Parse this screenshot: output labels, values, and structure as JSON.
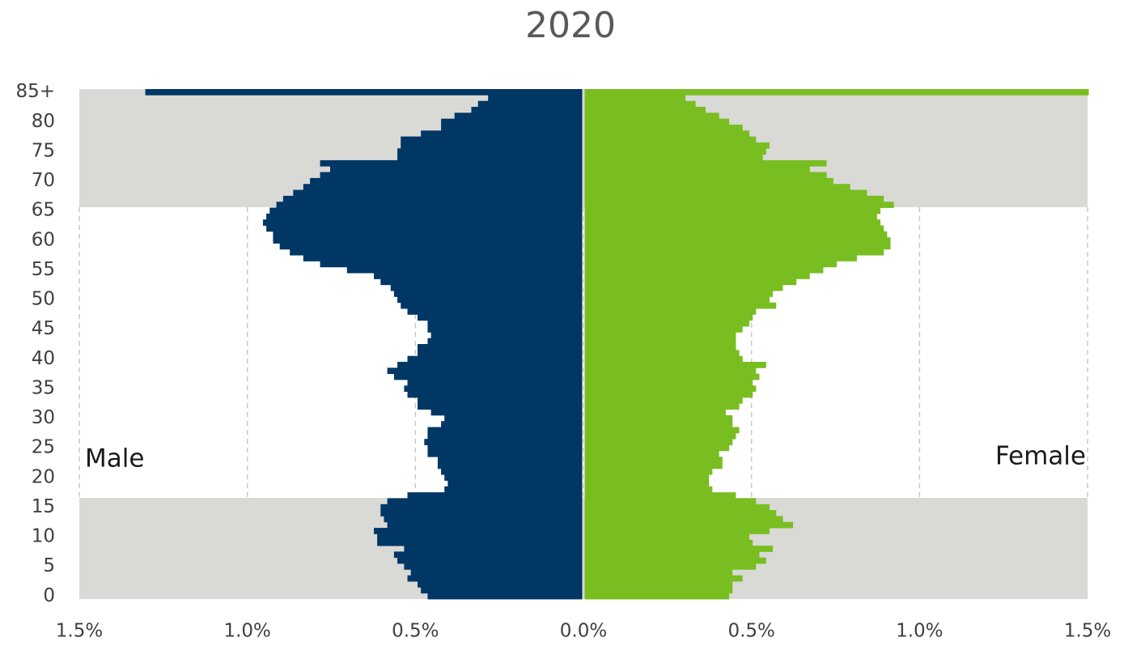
{
  "chart_data": {
    "type": "pyramid",
    "title": "2020",
    "categories": [
      "0",
      null,
      null,
      null,
      null,
      "5",
      null,
      null,
      null,
      null,
      "10",
      null,
      null,
      null,
      null,
      "15",
      null,
      null,
      null,
      null,
      "20",
      null,
      null,
      null,
      null,
      "25",
      null,
      null,
      null,
      null,
      "30",
      null,
      null,
      null,
      null,
      "35",
      null,
      null,
      null,
      null,
      "40",
      null,
      null,
      null,
      null,
      "45",
      null,
      null,
      null,
      null,
      "50",
      null,
      null,
      null,
      null,
      "55",
      null,
      null,
      null,
      null,
      "60",
      null,
      null,
      null,
      null,
      "65",
      null,
      null,
      null,
      null,
      "70",
      null,
      null,
      null,
      null,
      "75",
      null,
      null,
      null,
      null,
      "80",
      null,
      null,
      null,
      null,
      "85+"
    ],
    "series": [
      {
        "name": "Male",
        "color": "#003764",
        "values": [
          0.46,
          0.48,
          0.49,
          0.52,
          0.51,
          0.53,
          0.55,
          0.56,
          0.53,
          0.61,
          0.61,
          0.62,
          0.58,
          0.59,
          0.6,
          0.6,
          0.58,
          0.52,
          0.41,
          0.4,
          0.41,
          0.42,
          0.43,
          0.43,
          0.46,
          0.46,
          0.47,
          0.46,
          0.46,
          0.42,
          0.41,
          0.45,
          0.49,
          0.49,
          0.52,
          0.53,
          0.52,
          0.56,
          0.58,
          0.55,
          0.52,
          0.49,
          0.49,
          0.46,
          0.45,
          0.46,
          0.46,
          0.49,
          0.52,
          0.54,
          0.55,
          0.56,
          0.57,
          0.6,
          0.62,
          0.7,
          0.78,
          0.83,
          0.87,
          0.9,
          0.92,
          0.92,
          0.94,
          0.95,
          0.94,
          0.93,
          0.91,
          0.89,
          0.86,
          0.83,
          0.81,
          0.78,
          0.75,
          0.78,
          0.55,
          0.55,
          0.54,
          0.54,
          0.48,
          0.42,
          0.42,
          0.38,
          0.33,
          0.31,
          0.28,
          1.3
        ]
      },
      {
        "name": "Female",
        "color": "#78be20",
        "values": [
          0.43,
          0.44,
          0.44,
          0.47,
          0.44,
          0.51,
          0.54,
          0.52,
          0.56,
          0.5,
          0.49,
          0.55,
          0.62,
          0.59,
          0.57,
          0.55,
          0.51,
          0.45,
          0.38,
          0.37,
          0.37,
          0.38,
          0.41,
          0.41,
          0.4,
          0.43,
          0.44,
          0.45,
          0.46,
          0.44,
          0.44,
          0.42,
          0.46,
          0.47,
          0.5,
          0.51,
          0.5,
          0.52,
          0.51,
          0.54,
          0.47,
          0.46,
          0.45,
          0.45,
          0.45,
          0.47,
          0.49,
          0.5,
          0.51,
          0.57,
          0.55,
          0.56,
          0.59,
          0.63,
          0.67,
          0.71,
          0.75,
          0.81,
          0.89,
          0.91,
          0.91,
          0.9,
          0.89,
          0.88,
          0.87,
          0.88,
          0.92,
          0.89,
          0.84,
          0.79,
          0.74,
          0.72,
          0.67,
          0.72,
          0.53,
          0.54,
          0.55,
          0.51,
          0.49,
          0.47,
          0.43,
          0.4,
          0.36,
          0.33,
          0.3,
          1.5
        ]
      }
    ],
    "xlim": [
      -1.5,
      1.5
    ],
    "xticks": [
      {
        "value": -1.5,
        "label": "1.5%"
      },
      {
        "value": -1.0,
        "label": "1.0%"
      },
      {
        "value": -0.5,
        "label": "0.5%"
      },
      {
        "value": 0,
        "label": "0.0%"
      },
      {
        "value": 0.5,
        "label": "0.5%"
      },
      {
        "value": 1.0,
        "label": "1.0%"
      },
      {
        "value": 1.5,
        "label": "1.5%"
      }
    ],
    "grid": true
  }
}
